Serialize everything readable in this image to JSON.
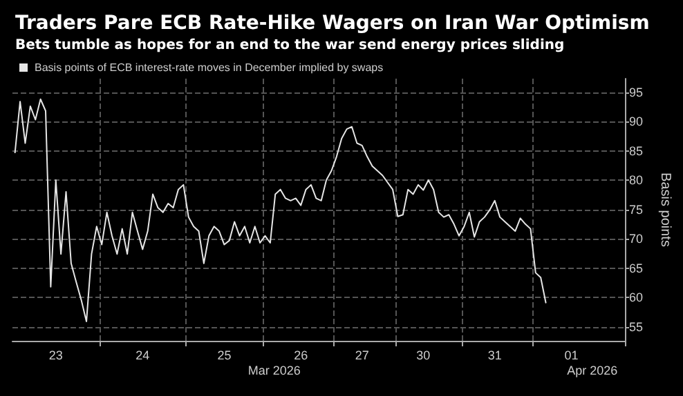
{
  "chart_data": {
    "type": "line",
    "title": "Traders Pare ECB Rate-Hike Wagers on Iran War Optimism",
    "subtitle": "Bets tumble as hopes for an end to the war send energy prices sliding",
    "ylabel": "Basis points",
    "annotations": [
      "Mar 2026",
      "Apr 2026"
    ],
    "categories": [
      null,
      null,
      null,
      null,
      null,
      null,
      null,
      null,
      "23",
      null,
      null,
      null,
      null,
      null,
      null,
      null,
      null,
      null,
      null,
      null,
      null,
      null,
      null,
      null,
      null,
      "24",
      null,
      null,
      null,
      null,
      null,
      null,
      null,
      null,
      null,
      null,
      null,
      null,
      null,
      null,
      null,
      "25",
      null,
      null,
      null,
      null,
      null,
      null,
      null,
      null,
      null,
      null,
      null,
      null,
      null,
      null,
      "26",
      null,
      null,
      null,
      null,
      null,
      null,
      null,
      null,
      null,
      null,
      null,
      "27",
      null,
      null,
      null,
      null,
      null,
      null,
      null,
      null,
      null,
      null,
      null,
      "30",
      null,
      null,
      null,
      null,
      null,
      null,
      null,
      null,
      null,
      null,
      null,
      null,
      null,
      "31",
      null,
      null,
      null,
      null,
      null,
      null,
      null,
      null,
      null,
      null,
      null,
      null,
      null,
      null,
      "01",
      null,
      null,
      null,
      null,
      null,
      null,
      null,
      null,
      null,
      null
    ],
    "series": [
      {
        "name": "Basis points of ECB interest-rate moves in December implied by swaps",
        "color": "#e6e6e6",
        "values": [
          84.7,
          93.4,
          86.3,
          92.6,
          90.3,
          93.8,
          91.8,
          61.8,
          80.0,
          67.4,
          78.0,
          65.8,
          62.6,
          59.5,
          55.9,
          67.4,
          72.1,
          69.0,
          74.5,
          70.5,
          67.4,
          71.7,
          67.4,
          74.5,
          71.3,
          68.2,
          71.3,
          77.6,
          75.3,
          74.5,
          76.0,
          75.3,
          78.4,
          79.2,
          73.7,
          72.1,
          71.3,
          65.8,
          70.5,
          72.1,
          71.3,
          69.0,
          69.7,
          72.9,
          70.5,
          72.1,
          69.3,
          72.1,
          69.3,
          70.5,
          69.3,
          77.6,
          78.4,
          76.9,
          76.5,
          76.9,
          75.7,
          78.4,
          79.2,
          76.9,
          76.5,
          80.0,
          81.6,
          84.0,
          87.1,
          88.7,
          89.1,
          86.3,
          85.9,
          84.0,
          82.4,
          81.6,
          80.8,
          79.6,
          78.4,
          73.8,
          74.1,
          78.4,
          77.6,
          79.2,
          78.3,
          80.0,
          78.4,
          74.5,
          73.7,
          74.1,
          72.5,
          70.5,
          72.1,
          74.5,
          70.3,
          72.9,
          73.7,
          74.9,
          76.5,
          73.7,
          72.9,
          72.1,
          71.3,
          73.5,
          72.5,
          71.7,
          64.2,
          63.4,
          59.1,
          null,
          null,
          null,
          null,
          null,
          null,
          null,
          null,
          null,
          null,
          null,
          null,
          null,
          null,
          null
        ]
      }
    ],
    "ylim": [
      52.6,
      97.3
    ],
    "yticks": [
      55,
      60,
      65,
      70,
      75,
      80,
      85,
      90,
      95
    ],
    "grid": true,
    "legend": "top left",
    "marker": "none",
    "line_style": "solid"
  }
}
